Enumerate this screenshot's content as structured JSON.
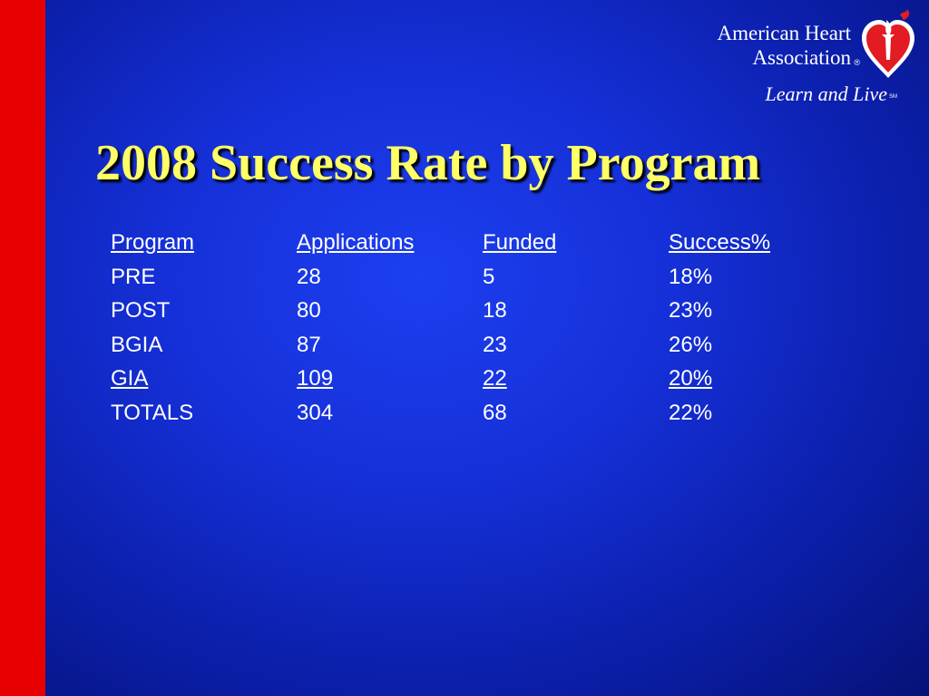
{
  "logo": {
    "line1": "American Heart",
    "line2": "Association",
    "registered": "®",
    "tagline": "Learn and Live",
    "service_mark": "SM"
  },
  "title": "2008 Success Rate by Program",
  "table": {
    "headers": [
      "Program",
      "Applications",
      "Funded",
      "Success%"
    ],
    "rows": [
      [
        "PRE",
        "28",
        "5",
        "18%"
      ],
      [
        "POST",
        "80",
        "18",
        "23%"
      ],
      [
        "BGIA",
        "87",
        "23",
        "26%"
      ],
      [
        "GIA",
        "109",
        "22",
        "20%"
      ],
      [
        "TOTALS",
        "304",
        "68",
        "22%"
      ]
    ]
  },
  "colors": {
    "background": "#1530d8",
    "side_bar": "#e60000",
    "title": "#ffff66",
    "text": "#ffffff"
  }
}
